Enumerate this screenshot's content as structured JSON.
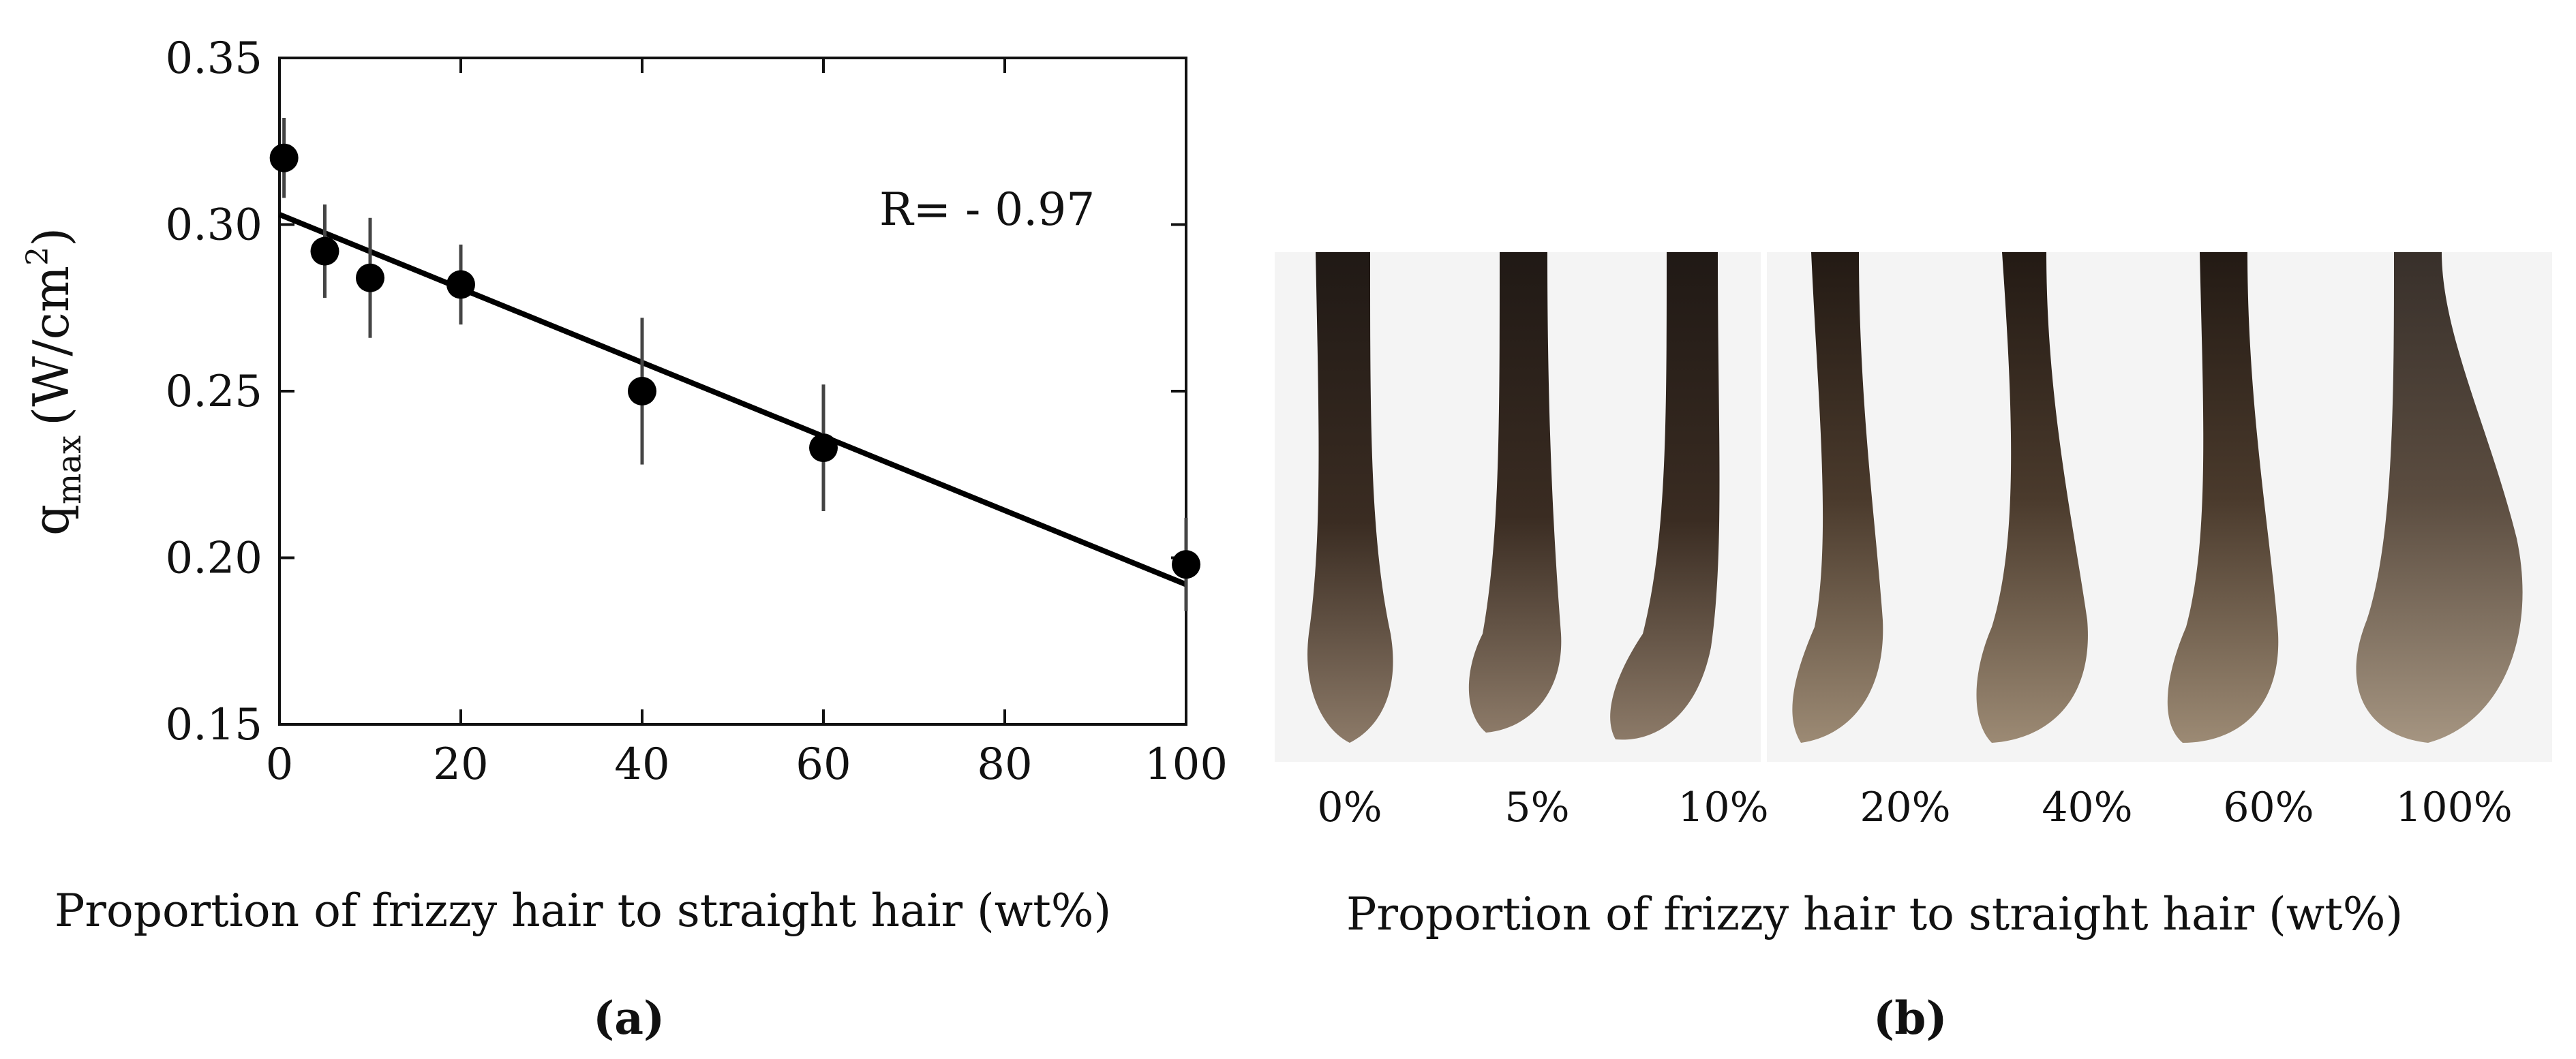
{
  "chart_data": {
    "type": "scatter",
    "title": "",
    "xlabel": "Proportion of frizzy hair to straight hair (wt%)",
    "ylabel": "q",
    "ylabel_subscript": "max",
    "ylabel_unit": "(W/cm",
    "ylabel_superscript": "2",
    "ylabel_close": ")",
    "xlim": [
      0,
      100
    ],
    "ylim": [
      0.15,
      0.35
    ],
    "xticks": [
      "0",
      "20",
      "40",
      "60",
      "80",
      "100"
    ],
    "yticks": [
      "0.15",
      "0.20",
      "0.25",
      "0.30",
      "0.35"
    ],
    "grid": false,
    "series": [
      {
        "x": [
          0.5,
          5,
          10,
          20,
          40,
          60,
          100
        ],
        "y": [
          0.32,
          0.292,
          0.284,
          0.282,
          0.25,
          0.233,
          0.198
        ],
        "yerr": [
          0.012,
          0.014,
          0.018,
          0.012,
          0.022,
          0.019,
          0.014
        ]
      }
    ],
    "fit_line": {
      "x": [
        0,
        100
      ],
      "y": [
        0.303,
        0.192
      ]
    },
    "annotation": "R= - 0.97"
  },
  "panel_b": {
    "labels": [
      "0%",
      "5%",
      "10%",
      "20%",
      "40%",
      "60%",
      "100%"
    ],
    "xlabel": "Proportion of frizzy hair to straight hair (wt%)"
  },
  "panel_labels": {
    "a": "(a)",
    "b": "(b)"
  }
}
